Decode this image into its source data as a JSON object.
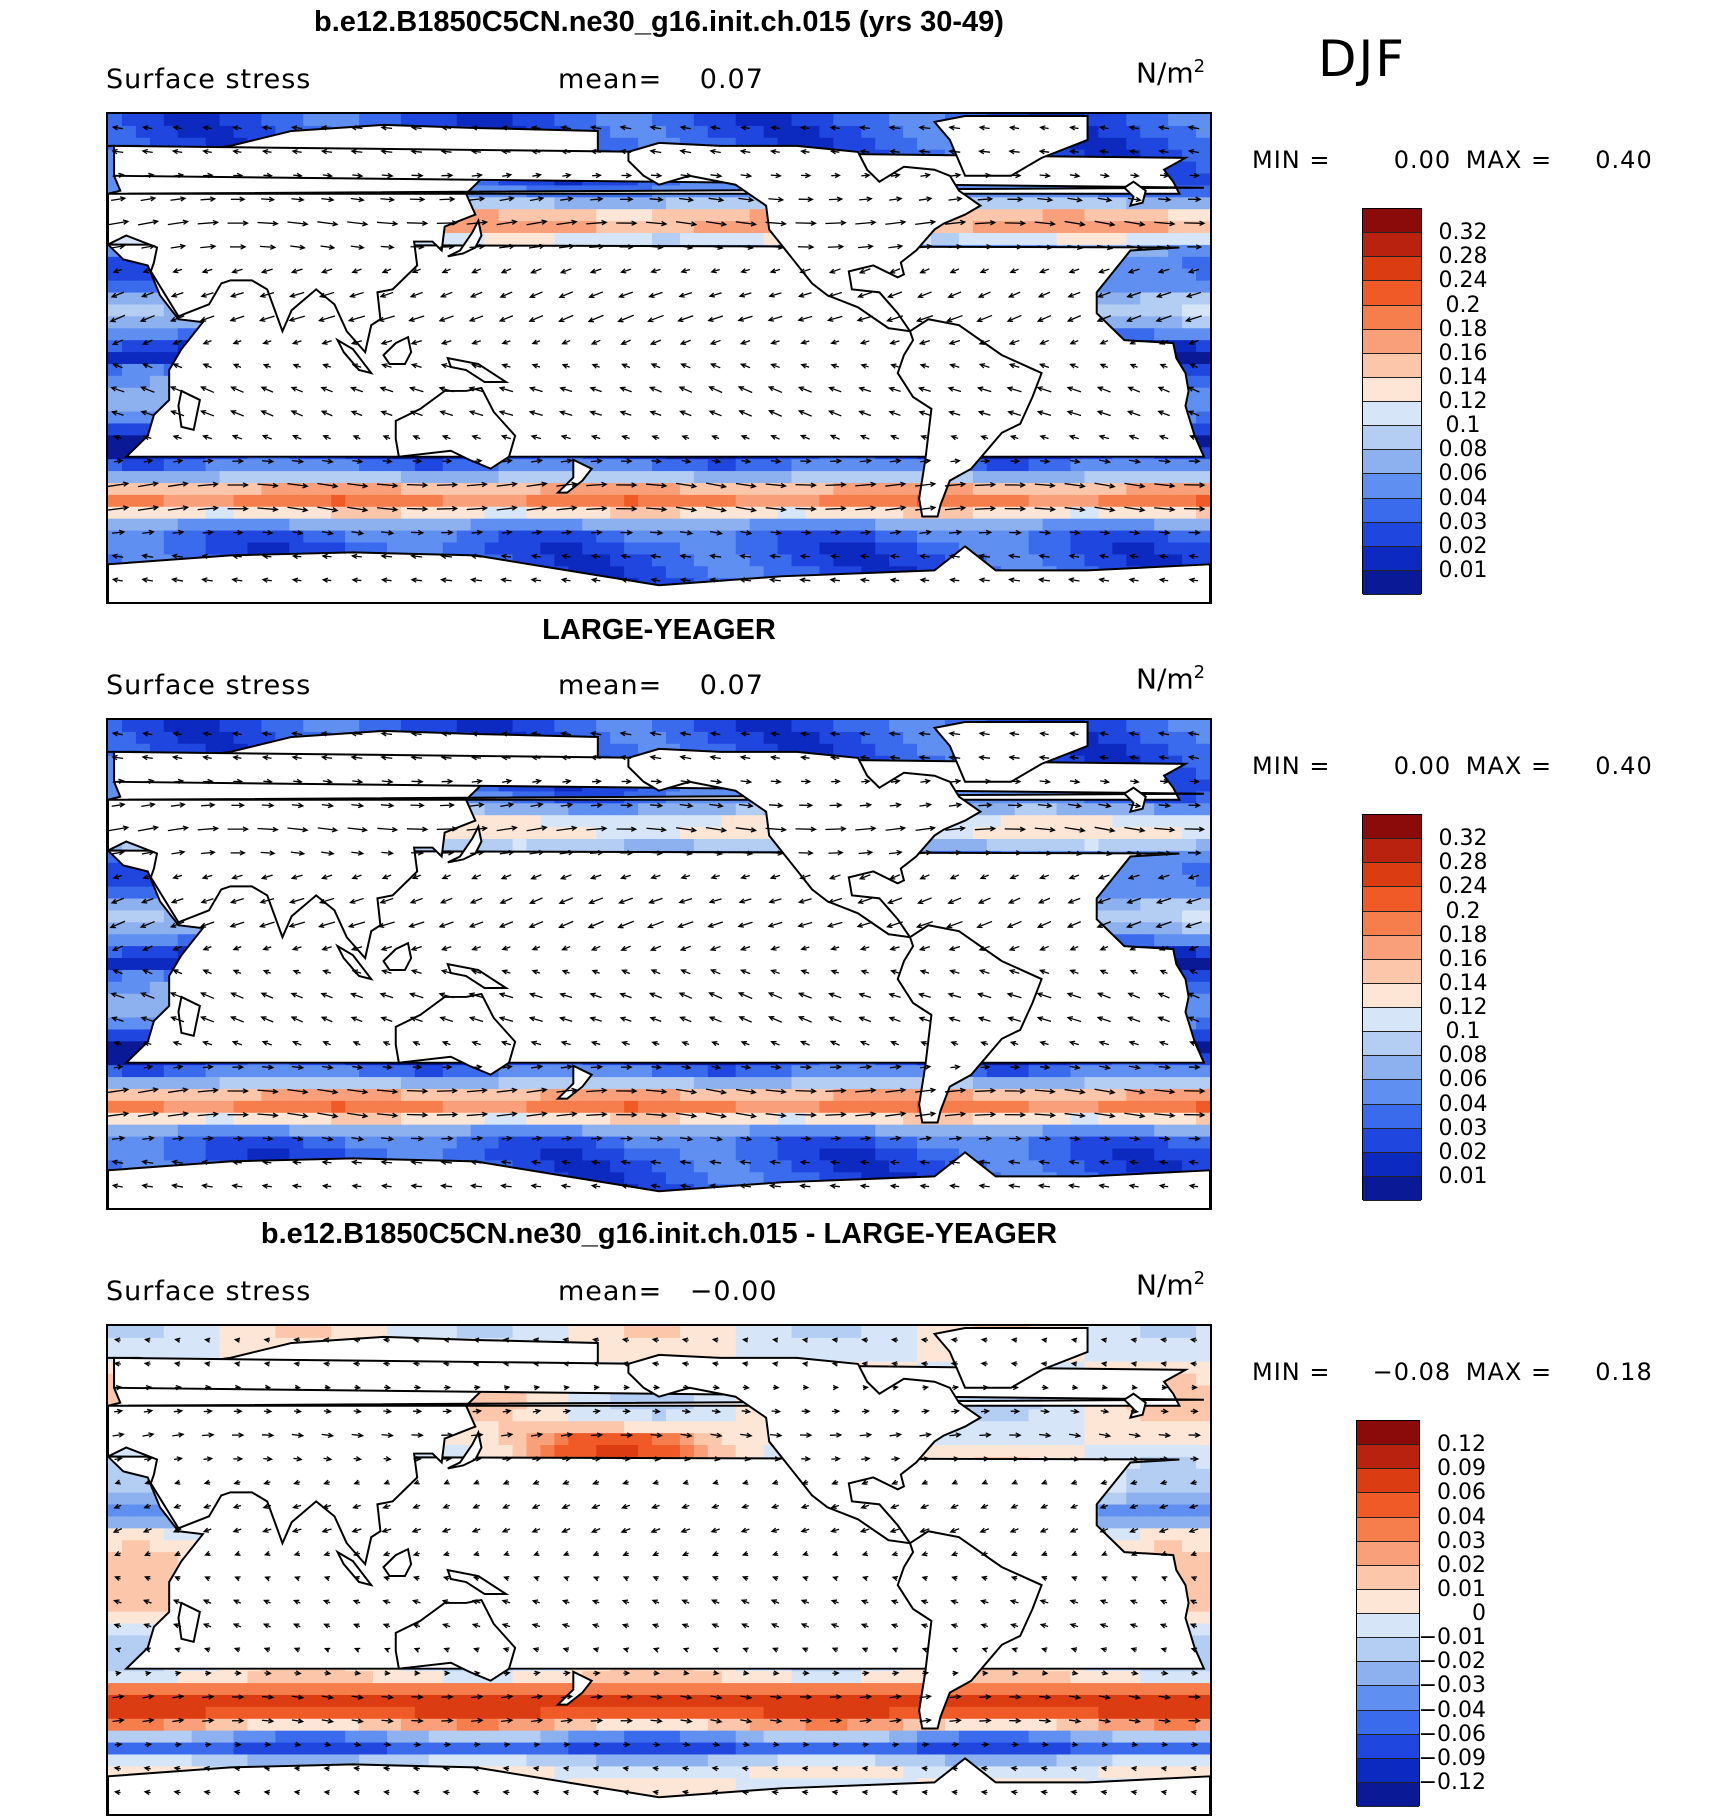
{
  "season": "DJF",
  "panels": [
    {
      "title": "b.e12.B1850C5CN.ne30_g16.init.ch.015 (yrs 30-49)",
      "variable": "Surface stress",
      "mean_label": "mean=",
      "mean_value": "0.07",
      "units_base": "N/m",
      "units_exp": "2",
      "min_label": "MIN =",
      "min_value": "0.00",
      "max_label": "MAX =",
      "max_value": "0.40",
      "colorbar_labels": [
        "0.32",
        "0.28",
        "0.24",
        "0.2",
        "0.18",
        "0.16",
        "0.14",
        "0.12",
        "0.1",
        "0.08",
        "0.06",
        "0.04",
        "0.03",
        "0.02",
        "0.01"
      ],
      "colorbar_colors": [
        "#8b0a0a",
        "#b8220f",
        "#dc3c12",
        "#ef5a26",
        "#f67d4c",
        "#f9a07a",
        "#fbc6aa",
        "#fde6d6",
        "#d6e6f8",
        "#b3cdf3",
        "#8cb1ee",
        "#5f8ff0",
        "#3a6bed",
        "#1f47e0",
        "#0d2ac0",
        "#0a1a96"
      ],
      "field": "model"
    },
    {
      "title": "LARGE-YEAGER",
      "variable": "Surface stress",
      "mean_label": "mean=",
      "mean_value": "0.07",
      "units_base": "N/m",
      "units_exp": "2",
      "min_label": "MIN =",
      "min_value": "0.00",
      "max_label": "MAX =",
      "max_value": "0.40",
      "colorbar_labels": [
        "0.32",
        "0.28",
        "0.24",
        "0.2",
        "0.18",
        "0.16",
        "0.14",
        "0.12",
        "0.1",
        "0.08",
        "0.06",
        "0.04",
        "0.03",
        "0.02",
        "0.01"
      ],
      "colorbar_colors": [
        "#8b0a0a",
        "#b8220f",
        "#dc3c12",
        "#ef5a26",
        "#f67d4c",
        "#f9a07a",
        "#fbc6aa",
        "#fde6d6",
        "#d6e6f8",
        "#b3cdf3",
        "#8cb1ee",
        "#5f8ff0",
        "#3a6bed",
        "#1f47e0",
        "#0d2ac0",
        "#0a1a96"
      ],
      "field": "obs"
    },
    {
      "title": "b.e12.B1850C5CN.ne30_g16.init.ch.015 - LARGE-YEAGER",
      "variable": "Surface stress",
      "mean_label": "mean=",
      "mean_value": "−0.00",
      "units_base": "N/m",
      "units_exp": "2",
      "min_label": "MIN =",
      "min_value": "−0.08",
      "max_label": "MAX =",
      "max_value": "0.18",
      "colorbar_labels": [
        "0.12",
        "0.09",
        "0.06",
        "0.04",
        "0.03",
        "0.02",
        "0.01",
        "0",
        "−0.01",
        "−0.02",
        "−0.03",
        "−0.04",
        "−0.06",
        "−0.09",
        "−0.12"
      ],
      "colorbar_colors": [
        "#8b0a0a",
        "#b8220f",
        "#dc3c12",
        "#ef5a26",
        "#f67d4c",
        "#f9a07a",
        "#fbc6aa",
        "#fde6d6",
        "#d6e6f8",
        "#b3cdf3",
        "#8cb1ee",
        "#5f8ff0",
        "#3a6bed",
        "#1f47e0",
        "#0d2ac0",
        "#0a1a96"
      ],
      "field": "diff"
    }
  ]
}
